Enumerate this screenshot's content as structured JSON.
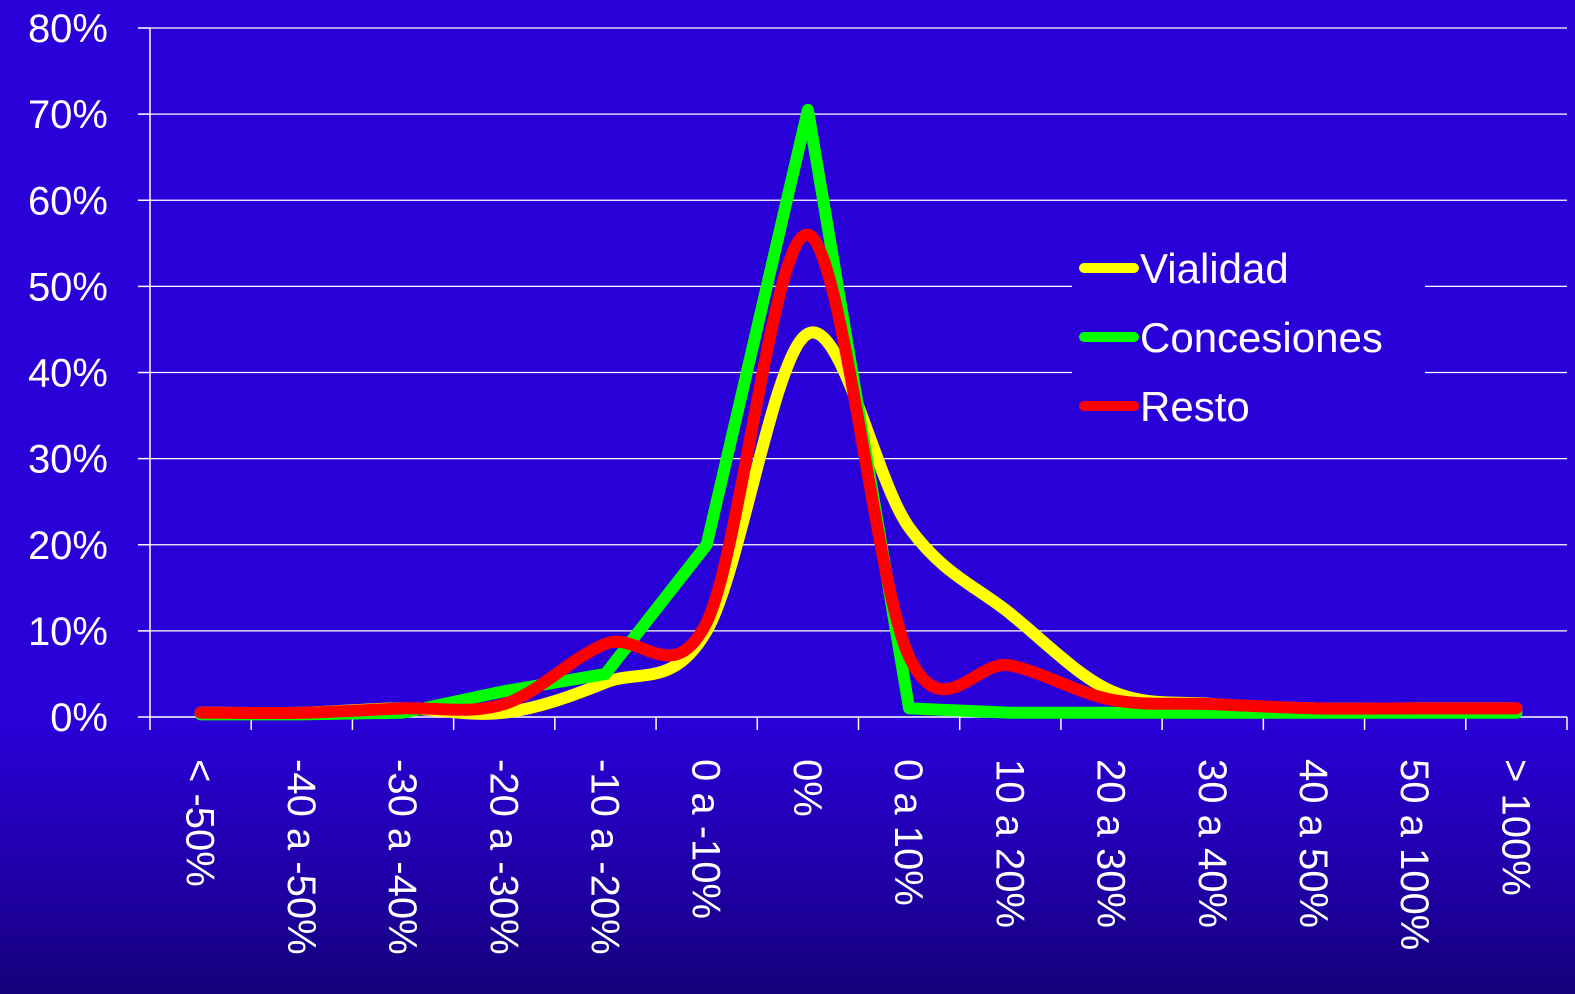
{
  "chart_data": {
    "type": "line",
    "title": "",
    "xlabel": "",
    "ylabel": "",
    "categories": [
      "< -50%",
      "-40 a -50%",
      "-30 a -40%",
      "-20 a -30%",
      "-10 a -20%",
      "0 a -10%",
      "0%",
      "0 a 10%",
      "10 a 20%",
      "20 a 30%",
      "30 a 40%",
      "40 a 50%",
      "50 a 100%",
      "> 100%"
    ],
    "yticks": [
      "0%",
      "10%",
      "20%",
      "30%",
      "40%",
      "50%",
      "60%",
      "70%",
      "80%"
    ],
    "ylim": [
      0,
      80
    ],
    "grid": true,
    "legend_position": "right",
    "series": [
      {
        "name": "Vialidad",
        "color": "#ffff00",
        "smooth": true,
        "values": [
          0.5,
          0.5,
          1,
          0.5,
          4,
          10,
          44.5,
          22,
          12,
          3,
          1.5,
          1,
          1,
          1
        ]
      },
      {
        "name": "Concesiones",
        "color": "#00ff00",
        "smooth": false,
        "values": [
          0.3,
          0.3,
          0.5,
          3,
          5,
          20,
          70.5,
          1,
          0.5,
          0.5,
          0.5,
          0.5,
          0.5,
          0.5
        ]
      },
      {
        "name": "Resto",
        "color": "#ff0000",
        "smooth": true,
        "values": [
          0.5,
          0.5,
          1,
          1.5,
          8.5,
          11,
          56,
          7,
          6,
          2,
          1.5,
          1,
          1,
          1
        ]
      }
    ]
  }
}
